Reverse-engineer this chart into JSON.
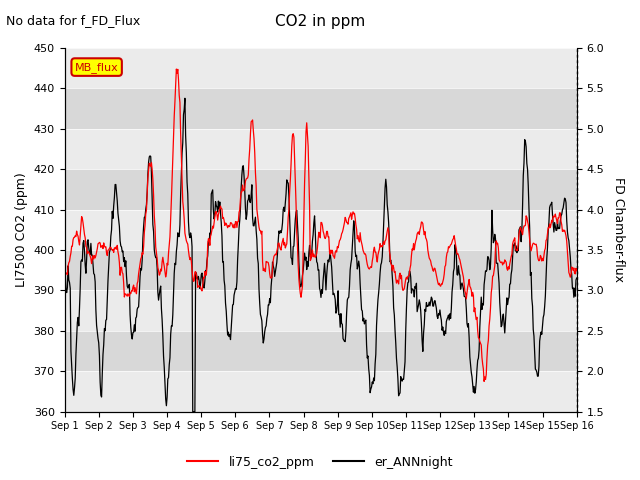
{
  "title": "CO2 in ppm",
  "top_text": "No data for f_FD_Flux",
  "ylabel_left": "LI7500 CO2 (ppm)",
  "ylabel_right": "FD Chamber-flux",
  "ylim_left": [
    360,
    450
  ],
  "ylim_right": [
    1.5,
    6.0
  ],
  "yticks_left": [
    360,
    370,
    380,
    390,
    400,
    410,
    420,
    430,
    440,
    450
  ],
  "yticks_right": [
    1.5,
    2.0,
    2.5,
    3.0,
    3.5,
    4.0,
    4.5,
    5.0,
    5.5,
    6.0
  ],
  "xtick_labels": [
    "Sep 1",
    "Sep 2",
    "Sep 3",
    "Sep 4",
    "Sep 5",
    "Sep 6",
    "Sep 7",
    "Sep 8",
    "Sep 9",
    "Sep 10",
    "Sep 11",
    "Sep 12",
    "Sep 13",
    "Sep 14",
    "Sep 15",
    "Sep 16"
  ],
  "legend_labels": [
    "li75_co2_ppm",
    "er_ANNnight"
  ],
  "legend_colors": [
    "#ff0000",
    "#000000"
  ],
  "band_light": "#ebebeb",
  "band_dark": "#d8d8d8",
  "MB_flux_box_color": "#ffff00",
  "MB_flux_text_color": "#cc0000",
  "figsize": [
    6.4,
    4.8
  ],
  "dpi": 100
}
